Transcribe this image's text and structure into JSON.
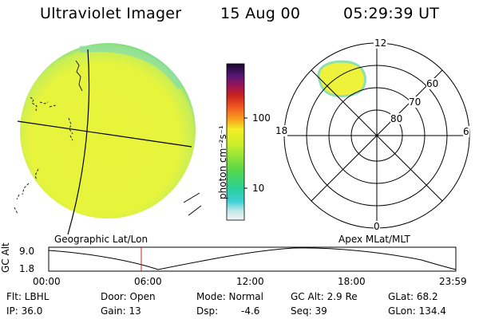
{
  "header": {
    "instrument": "Ultraviolet Imager",
    "date": "15 Aug 00",
    "time": "05:29:39 UT"
  },
  "colorbar": {
    "unit_label": "photon cm⁻²s⁻¹",
    "tick_labels": [
      "100",
      "10"
    ],
    "scale": "log"
  },
  "polar_plot": {
    "mlt_labels": {
      "top": "12",
      "right": "6",
      "bottom": "0",
      "left": "18"
    },
    "lat_rings": [
      "60",
      "70",
      "80"
    ]
  },
  "panel_labels": {
    "left": "Geographic Lat/Lon",
    "right": "Apex MLat/MLT"
  },
  "alt_plot": {
    "ylabel": "GC Alt",
    "ytick_top": "9.0",
    "ytick_bottom": "1.8",
    "xtick_labels": [
      "00:00",
      "06:00",
      "12:00",
      "18:00",
      "23:59"
    ],
    "marker_time": "05:30"
  },
  "footer": {
    "filter": "Flt: LBHL",
    "ip": "IP: 36.0",
    "door": "Door: Open",
    "gain": "Gain: 13",
    "mode": "Mode: Normal",
    "dsp_label": "Dsp:",
    "dsp_value": "-4.6",
    "gc_alt": "GC Alt: 2.9 Re",
    "seq": "Seq: 39",
    "glat": "GLat: 68.2",
    "glon": "GLon: 134.4"
  },
  "colors": {
    "earth_fill": "#e8f43a",
    "limb_glow": "#8ee07a",
    "marker": "#cc2222"
  }
}
